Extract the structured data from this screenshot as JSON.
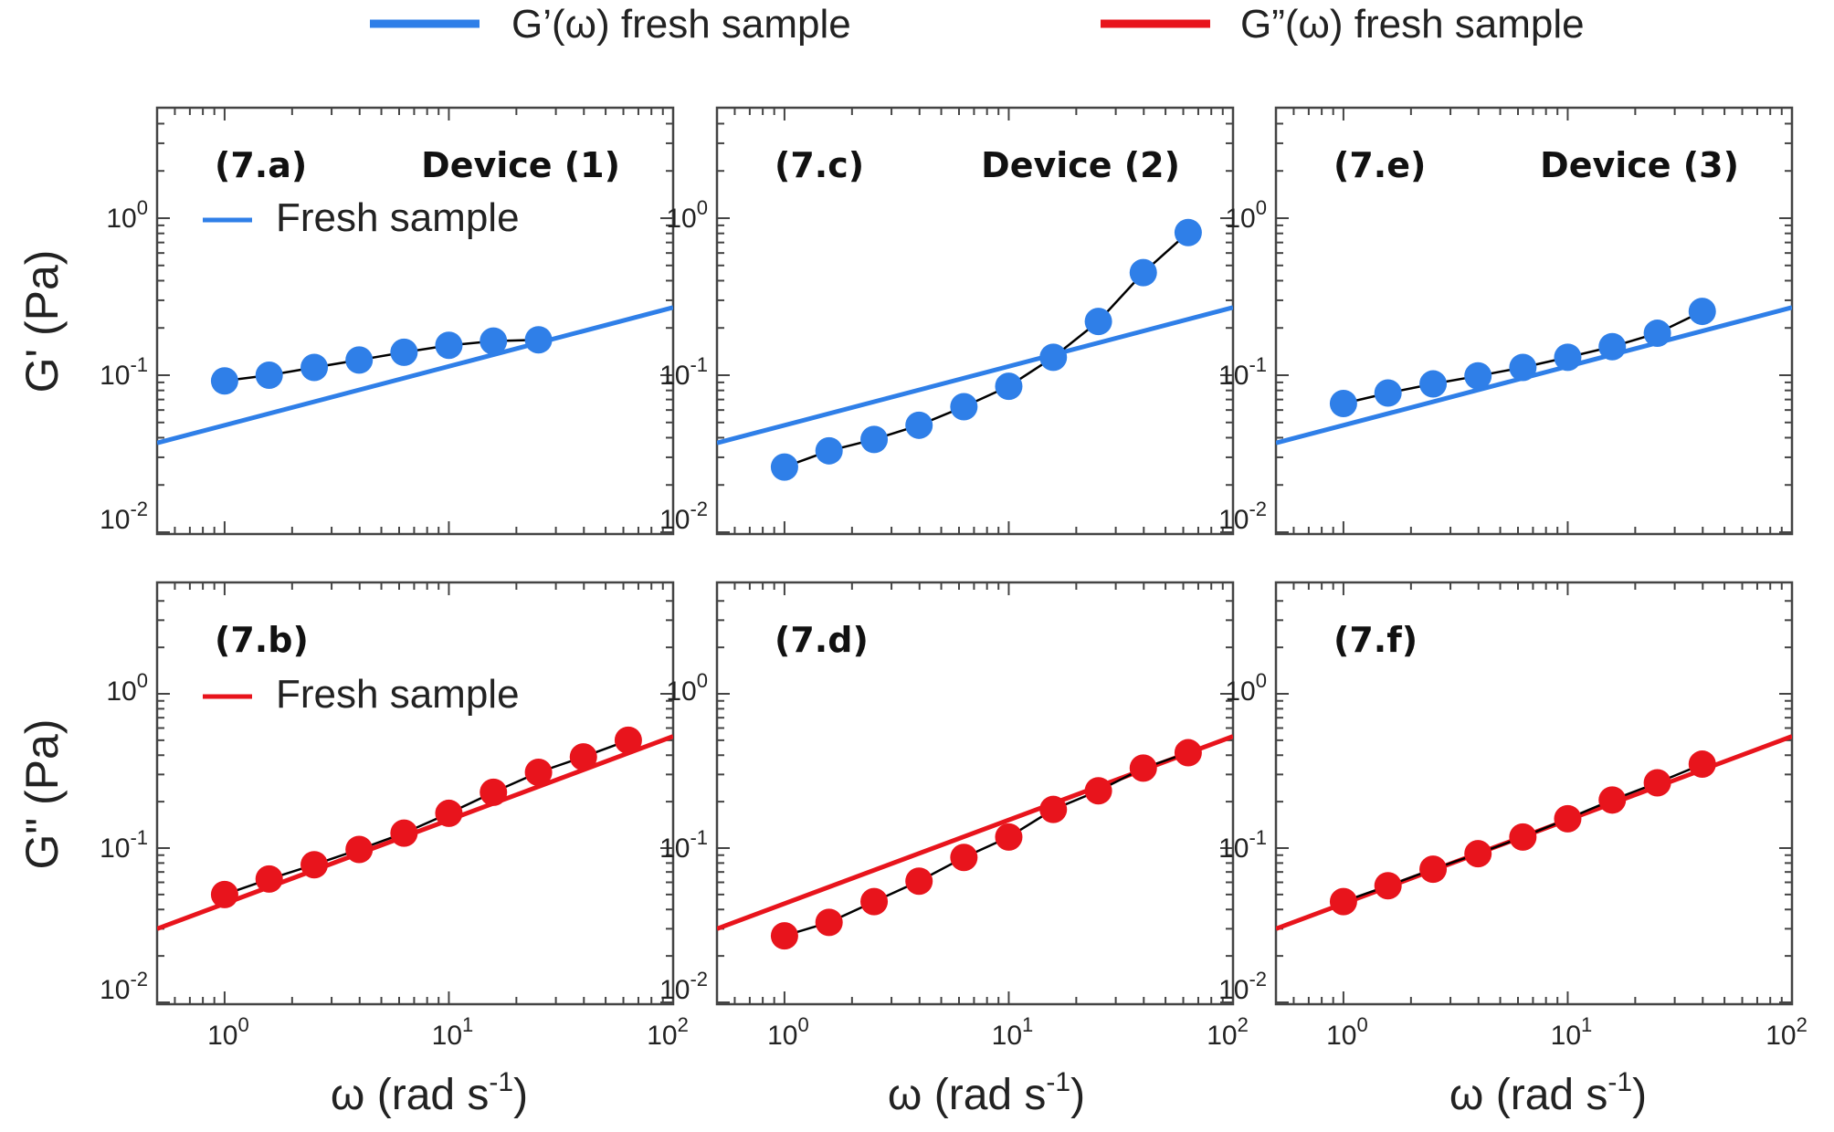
{
  "colors": {
    "gprime": "#2f7fe8",
    "gdoubleprime": "#e8141c",
    "line_connect": "#000000",
    "axes": "#444444"
  },
  "legend": {
    "gprime_label": "G’(ω) fresh sample",
    "gdoubleprime_label": "G”(ω) fresh sample"
  },
  "axis_labels": {
    "x_base": "ω (rad s",
    "x_sup": "-1",
    "x_close": ")",
    "y_top": "G' (Pa)",
    "y_bottom": "G\" (Pa)"
  },
  "ticks": {
    "x": [
      {
        "base": "10",
        "exp": "0"
      },
      {
        "base": "10",
        "exp": "1"
      },
      {
        "base": "10",
        "exp": "2"
      }
    ],
    "y": [
      {
        "base": "10",
        "exp": "-2"
      },
      {
        "base": "10",
        "exp": "-1"
      },
      {
        "base": "10",
        "exp": "0"
      }
    ]
  },
  "chart_data": [
    {
      "type": "line",
      "id": "7a",
      "panel_label": "(7.a)",
      "device_label": "Device (1)",
      "inset_legend": "Fresh sample",
      "color": "gprime",
      "xscale": "log",
      "yscale": "log",
      "xlim": [
        0.5,
        100
      ],
      "ylim": [
        0.01,
        4.5
      ],
      "ylabel": "G' (Pa)",
      "xlabel": "ω (rad s-1)",
      "fresh_line": {
        "x": [
          0.5,
          100
        ],
        "y": [
          0.037,
          0.27
        ]
      },
      "points": {
        "x": [
          1.0,
          1.58,
          2.51,
          3.98,
          6.31,
          10.0,
          15.8,
          25.1
        ],
        "y": [
          0.092,
          0.1,
          0.112,
          0.125,
          0.14,
          0.155,
          0.165,
          0.168
        ]
      }
    },
    {
      "type": "line",
      "id": "7c",
      "panel_label": "(7.c)",
      "device_label": "Device (2)",
      "inset_legend": "",
      "color": "gprime",
      "xscale": "log",
      "yscale": "log",
      "xlim": [
        0.5,
        100
      ],
      "ylim": [
        0.01,
        4.5
      ],
      "ylabel": "G' (Pa)",
      "xlabel": "ω (rad s-1)",
      "fresh_line": {
        "x": [
          0.5,
          100
        ],
        "y": [
          0.037,
          0.27
        ]
      },
      "points": {
        "x": [
          1.0,
          1.58,
          2.51,
          3.98,
          6.31,
          10.0,
          15.8,
          25.1,
          39.8,
          63.1
        ],
        "y": [
          0.026,
          0.033,
          0.039,
          0.048,
          0.063,
          0.085,
          0.13,
          0.22,
          0.45,
          0.81
        ]
      }
    },
    {
      "type": "line",
      "id": "7e",
      "panel_label": "(7.e)",
      "device_label": "Device (3)",
      "inset_legend": "",
      "color": "gprime",
      "xscale": "log",
      "yscale": "log",
      "xlim": [
        0.5,
        100
      ],
      "ylim": [
        0.01,
        4.5
      ],
      "ylabel": "G' (Pa)",
      "xlabel": "ω (rad s-1)",
      "fresh_line": {
        "x": [
          0.5,
          100
        ],
        "y": [
          0.037,
          0.27
        ]
      },
      "points": {
        "x": [
          1.0,
          1.58,
          2.51,
          3.98,
          6.31,
          10.0,
          15.8,
          25.1,
          39.8
        ],
        "y": [
          0.066,
          0.077,
          0.088,
          0.099,
          0.112,
          0.13,
          0.152,
          0.185,
          0.255
        ]
      }
    },
    {
      "type": "line",
      "id": "7b",
      "panel_label": "(7.b)",
      "device_label": "",
      "inset_legend": "Fresh sample",
      "color": "gdoubleprime",
      "xscale": "log",
      "yscale": "log",
      "xlim": [
        0.5,
        100
      ],
      "ylim": [
        0.01,
        4.5
      ],
      "ylabel": "G\" (Pa)",
      "xlabel": "ω (rad s-1)",
      "fresh_line": {
        "x": [
          0.5,
          100
        ],
        "y": [
          0.03,
          0.53
        ]
      },
      "points": {
        "x": [
          1.0,
          1.58,
          2.51,
          3.98,
          6.31,
          10.0,
          15.8,
          25.1,
          39.8,
          63.1
        ],
        "y": [
          0.05,
          0.063,
          0.078,
          0.098,
          0.125,
          0.168,
          0.23,
          0.31,
          0.39,
          0.5
        ]
      }
    },
    {
      "type": "line",
      "id": "7d",
      "panel_label": "(7.d)",
      "device_label": "",
      "inset_legend": "",
      "color": "gdoubleprime",
      "xscale": "log",
      "yscale": "log",
      "xlim": [
        0.5,
        100
      ],
      "ylim": [
        0.01,
        4.5
      ],
      "ylabel": "G\" (Pa)",
      "xlabel": "ω (rad s-1)",
      "fresh_line": {
        "x": [
          0.5,
          100
        ],
        "y": [
          0.03,
          0.53
        ]
      },
      "points": {
        "x": [
          1.0,
          1.58,
          2.51,
          3.98,
          6.31,
          10.0,
          15.8,
          25.1,
          39.8,
          63.1
        ],
        "y": [
          0.027,
          0.033,
          0.045,
          0.061,
          0.087,
          0.118,
          0.178,
          0.235,
          0.33,
          0.415
        ]
      }
    },
    {
      "type": "line",
      "id": "7f",
      "panel_label": "(7.f)",
      "device_label": "",
      "inset_legend": "",
      "color": "gdoubleprime",
      "xscale": "log",
      "yscale": "log",
      "xlim": [
        0.5,
        100
      ],
      "ylim": [
        0.01,
        4.5
      ],
      "ylabel": "G\" (Pa)",
      "xlabel": "ω (rad s-1)",
      "fresh_line": {
        "x": [
          0.5,
          100
        ],
        "y": [
          0.03,
          0.53
        ]
      },
      "points": {
        "x": [
          1.0,
          1.58,
          2.51,
          3.98,
          6.31,
          10.0,
          15.8,
          25.1,
          39.8
        ],
        "y": [
          0.045,
          0.057,
          0.073,
          0.092,
          0.118,
          0.155,
          0.205,
          0.265,
          0.35
        ]
      }
    }
  ]
}
